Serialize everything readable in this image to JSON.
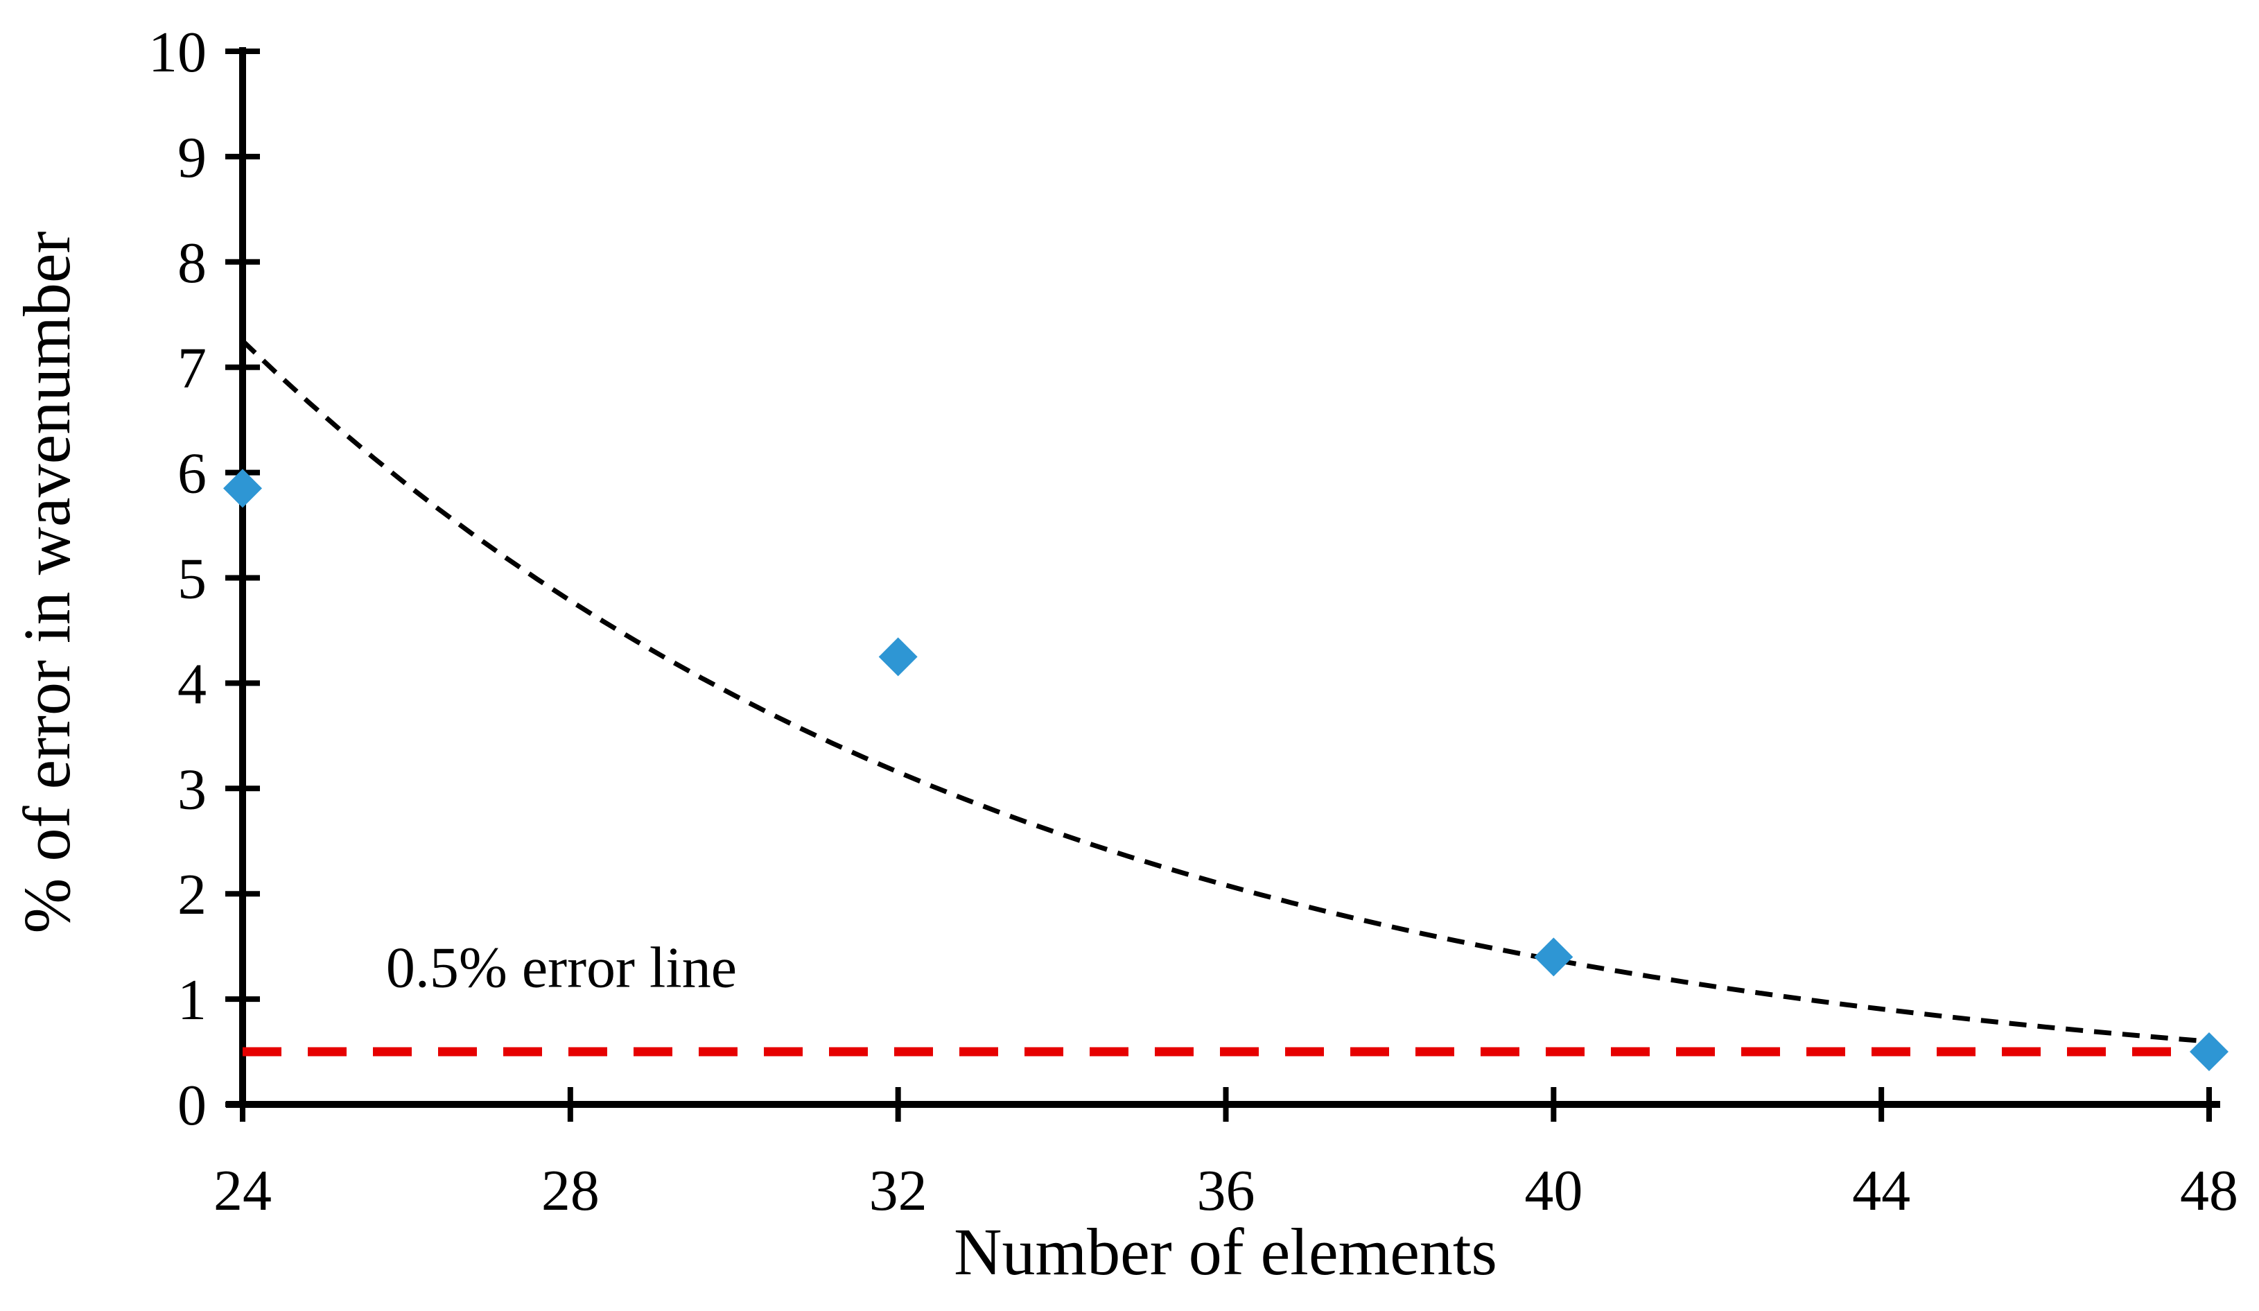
{
  "page": {
    "background": "#ffffff",
    "description": "Scatter chart of percentage error in wavenumber versus number of elements, with exponential dashed trendline and red dashed 0.5% error threshold line"
  },
  "chart_data": {
    "type": "scatter",
    "title": "",
    "xlabel": "Number of elements",
    "ylabel": "% of error in wavenumber",
    "xlim": [
      24,
      48
    ],
    "ylim": [
      0,
      10
    ],
    "x_ticks": [
      24,
      28,
      32,
      36,
      40,
      44,
      48
    ],
    "y_ticks": [
      0,
      1,
      2,
      3,
      4,
      5,
      6,
      7,
      8,
      9,
      10
    ],
    "grid": false,
    "legend": false,
    "colors": {
      "marker_blue": "#2e96d4",
      "threshold_red": "#e60000",
      "trend_black": "#000000",
      "axis_black": "#000000"
    },
    "series": [
      {
        "name": "error-data-points",
        "type": "scatter",
        "marker": "diamond",
        "color": "#2e96d4",
        "points": [
          {
            "x": 24,
            "y": 5.85
          },
          {
            "x": 32,
            "y": 4.25
          },
          {
            "x": 40,
            "y": 1.4
          },
          {
            "x": 48,
            "y": 0.5
          }
        ]
      },
      {
        "name": "exponential-trend-curve",
        "type": "exp_curve",
        "style": "dashed",
        "color": "#000000",
        "model": "y = a * exp(-k * (x - x0))",
        "params": {
          "a": 7.25,
          "k": 0.104,
          "x0": 24
        },
        "x_range": [
          24,
          48
        ],
        "sample_values": [
          {
            "x": 24,
            "y": 7.25
          },
          {
            "x": 28,
            "y": 4.78
          },
          {
            "x": 32,
            "y": 3.16
          },
          {
            "x": 36,
            "y": 2.08
          },
          {
            "x": 40,
            "y": 1.38
          },
          {
            "x": 44,
            "y": 0.91
          },
          {
            "x": 48,
            "y": 0.6
          }
        ]
      },
      {
        "name": "error-threshold-line",
        "type": "hline",
        "style": "dashed",
        "color": "#e60000",
        "y": 0.5
      }
    ],
    "annotation": {
      "text": "0.5% error line",
      "x": 25.75,
      "y": 1.3
    }
  }
}
